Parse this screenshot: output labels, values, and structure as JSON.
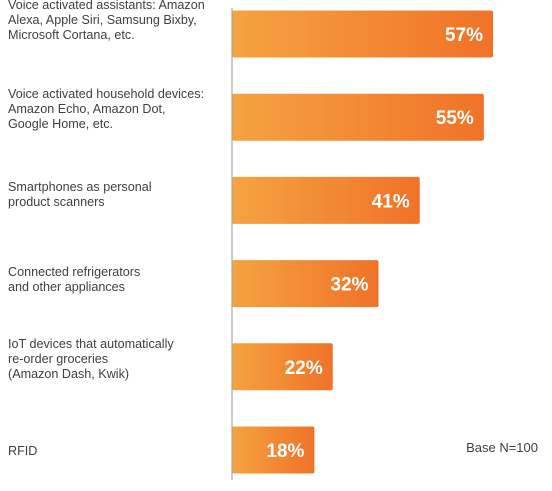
{
  "chart_data": {
    "type": "bar",
    "orientation": "horizontal",
    "categories": [
      [
        "Voice activated assistants: Amazon",
        "Alexa, Apple Siri, Samsung Bixby,",
        "Microsoft Cortana, etc."
      ],
      [
        "Voice activated household devices:",
        "Amazon Echo, Amazon Dot,",
        "Google Home, etc."
      ],
      [
        "Smartphones as personal",
        "product scanners"
      ],
      [
        "Connected refrigerators",
        "and other appliances"
      ],
      [
        "IoT devices that automatically",
        "re-order groceries",
        "(Amazon Dash, Kwik)"
      ],
      [
        "RFID"
      ]
    ],
    "values": [
      57,
      55,
      41,
      32,
      22,
      18
    ],
    "data_labels": [
      "57%",
      "55%",
      "41%",
      "32%",
      "22%",
      "18%"
    ],
    "unit": "%",
    "xlim": [
      0,
      60
    ],
    "grid": false,
    "legend": "none",
    "colors": {
      "bar_start": "#F5A340",
      "bar_end": "#F07228",
      "axis": "#A6A6A6",
      "text": "#404040"
    }
  },
  "note": "Base N=100"
}
